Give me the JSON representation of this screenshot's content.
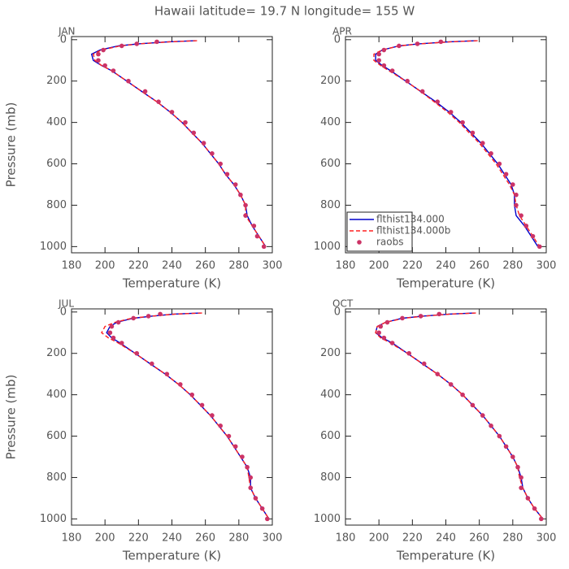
{
  "title": "Hawaii  latitude= 19.7 N longitude= 155 W",
  "chart_data": [
    {
      "type": "line",
      "title": "JAN",
      "xlabel": "Temperature (K)",
      "ylabel": "Pressure (mb)",
      "xlim": [
        180,
        300
      ],
      "ylim": [
        1030,
        -15
      ],
      "xticks": [
        180,
        200,
        220,
        240,
        260,
        280,
        300
      ],
      "yticks": [
        0,
        200,
        400,
        600,
        800,
        1000
      ],
      "legend": false,
      "y": [
        5,
        10,
        20,
        30,
        50,
        70,
        100,
        125,
        150,
        200,
        250,
        300,
        350,
        400,
        450,
        500,
        550,
        600,
        650,
        700,
        750,
        800,
        850,
        900,
        950,
        1000
      ],
      "series": [
        {
          "color": "#0000cc",
          "line_style": "solid",
          "x": [
            254,
            238,
            220,
            208,
            197,
            192,
            193,
            198,
            204,
            213,
            222,
            231,
            239,
            246,
            252,
            258,
            263,
            268,
            272,
            277,
            281,
            284,
            285,
            288,
            292,
            296
          ]
        },
        {
          "color": "#ff2020",
          "line_style": "dashed",
          "x": [
            255,
            239,
            221,
            209,
            198,
            193,
            194,
            198,
            204,
            213,
            222,
            231,
            239,
            246,
            252,
            258,
            263,
            268,
            272,
            277,
            281,
            284,
            284,
            288,
            292,
            296
          ]
        },
        {
          "color": "#cc3366",
          "line_style": "markers",
          "x": [
            null,
            231,
            219,
            210,
            199,
            196,
            196,
            200,
            205,
            214,
            224,
            232,
            240,
            248,
            253,
            259,
            264,
            269,
            273,
            278,
            281,
            284,
            284,
            289,
            291,
            295
          ]
        }
      ]
    },
    {
      "type": "line",
      "title": "APR",
      "xlabel": "Temperature (K)",
      "xlim": [
        180,
        300
      ],
      "ylim": [
        1030,
        -15
      ],
      "xticks": [
        180,
        200,
        220,
        240,
        260,
        280,
        300
      ],
      "yticks": [
        0,
        200,
        400,
        600,
        800,
        1000
      ],
      "legend": "lower-left",
      "y": [
        5,
        10,
        20,
        30,
        50,
        70,
        100,
        125,
        150,
        200,
        250,
        300,
        350,
        400,
        450,
        500,
        550,
        600,
        650,
        700,
        750,
        800,
        850,
        900,
        950,
        1000
      ],
      "series": [
        {
          "name": "flthist134.000",
          "color": "#0000cc",
          "line_style": "solid",
          "x": [
            258,
            242,
            224,
            212,
            202,
            198,
            198,
            202,
            207,
            216,
            225,
            234,
            242,
            249,
            255,
            261,
            266,
            271,
            275,
            279,
            281,
            281,
            282,
            287,
            291,
            295
          ]
        },
        {
          "name": "flthist134.000b",
          "color": "#ff2020",
          "line_style": "dashed",
          "x": [
            259,
            243,
            225,
            212,
            202,
            197,
            197,
            201,
            206,
            216,
            225,
            233,
            241,
            248,
            254,
            260,
            265,
            270,
            274,
            278,
            281,
            282,
            284,
            288,
            292,
            296
          ]
        },
        {
          "name": "raobs",
          "color": "#cc3366",
          "line_style": "markers",
          "x": [
            null,
            237,
            223,
            212,
            203,
            200,
            200,
            203,
            208,
            217,
            226,
            235,
            243,
            250,
            256,
            262,
            267,
            272,
            276,
            280,
            282,
            282,
            285,
            288,
            292,
            296
          ]
        }
      ]
    },
    {
      "type": "line",
      "title": "JUL",
      "xlabel": "Temperature (K)",
      "ylabel": "Pressure (mb)",
      "xlim": [
        180,
        300
      ],
      "ylim": [
        1030,
        -15
      ],
      "xticks": [
        180,
        200,
        220,
        240,
        260,
        280,
        300
      ],
      "yticks": [
        0,
        200,
        400,
        600,
        800,
        1000
      ],
      "legend": false,
      "y": [
        5,
        10,
        20,
        30,
        50,
        70,
        100,
        125,
        150,
        200,
        250,
        300,
        350,
        400,
        450,
        500,
        550,
        600,
        650,
        700,
        750,
        800,
        850,
        900,
        950,
        1000
      ],
      "series": [
        {
          "color": "#0000cc",
          "line_style": "solid",
          "x": [
            257,
            241,
            228,
            217,
            207,
            203,
            201,
            204,
            209,
            218,
            227,
            236,
            244,
            251,
            257,
            263,
            268,
            273,
            277,
            281,
            285,
            287,
            287,
            290,
            294,
            298
          ]
        },
        {
          "color": "#ff2020",
          "line_style": "dashed",
          "x": [
            258,
            242,
            228,
            216,
            206,
            200,
            198,
            202,
            208,
            218,
            227,
            236,
            244,
            251,
            257,
            263,
            268,
            273,
            277,
            281,
            285,
            286,
            287,
            290,
            294,
            298
          ]
        },
        {
          "color": "#cc3366",
          "line_style": "markers",
          "x": [
            null,
            233,
            226,
            217,
            208,
            204,
            203,
            205,
            210,
            219,
            228,
            237,
            245,
            252,
            258,
            264,
            269,
            274,
            278,
            282,
            285,
            287,
            287,
            290,
            294,
            297
          ]
        }
      ]
    },
    {
      "type": "line",
      "title": "OCT",
      "xlabel": "Temperature (K)",
      "xlim": [
        180,
        300
      ],
      "ylim": [
        1030,
        -15
      ],
      "xticks": [
        180,
        200,
        220,
        240,
        260,
        280,
        300
      ],
      "yticks": [
        0,
        200,
        400,
        600,
        800,
        1000
      ],
      "legend": false,
      "y": [
        5,
        10,
        20,
        30,
        50,
        70,
        100,
        125,
        150,
        200,
        250,
        300,
        350,
        400,
        450,
        500,
        550,
        600,
        650,
        700,
        750,
        800,
        850,
        900,
        950,
        1000
      ],
      "series": [
        {
          "color": "#0000cc",
          "line_style": "solid",
          "x": [
            257,
            242,
            226,
            214,
            204,
            199,
            198,
            202,
            208,
            217,
            226,
            235,
            243,
            250,
            256,
            262,
            267,
            272,
            276,
            280,
            283,
            285,
            286,
            289,
            293,
            298
          ]
        },
        {
          "color": "#ff2020",
          "line_style": "dashed",
          "x": [
            258,
            243,
            227,
            215,
            204,
            199,
            198,
            201,
            207,
            217,
            226,
            235,
            243,
            250,
            256,
            262,
            267,
            272,
            276,
            280,
            283,
            284,
            286,
            289,
            293,
            298
          ]
        },
        {
          "color": "#cc3366",
          "line_style": "markers",
          "x": [
            null,
            236,
            225,
            214,
            205,
            201,
            200,
            203,
            208,
            218,
            227,
            235,
            243,
            250,
            256,
            262,
            267,
            272,
            276,
            280,
            283,
            285,
            285,
            289,
            293,
            297
          ]
        }
      ]
    }
  ]
}
